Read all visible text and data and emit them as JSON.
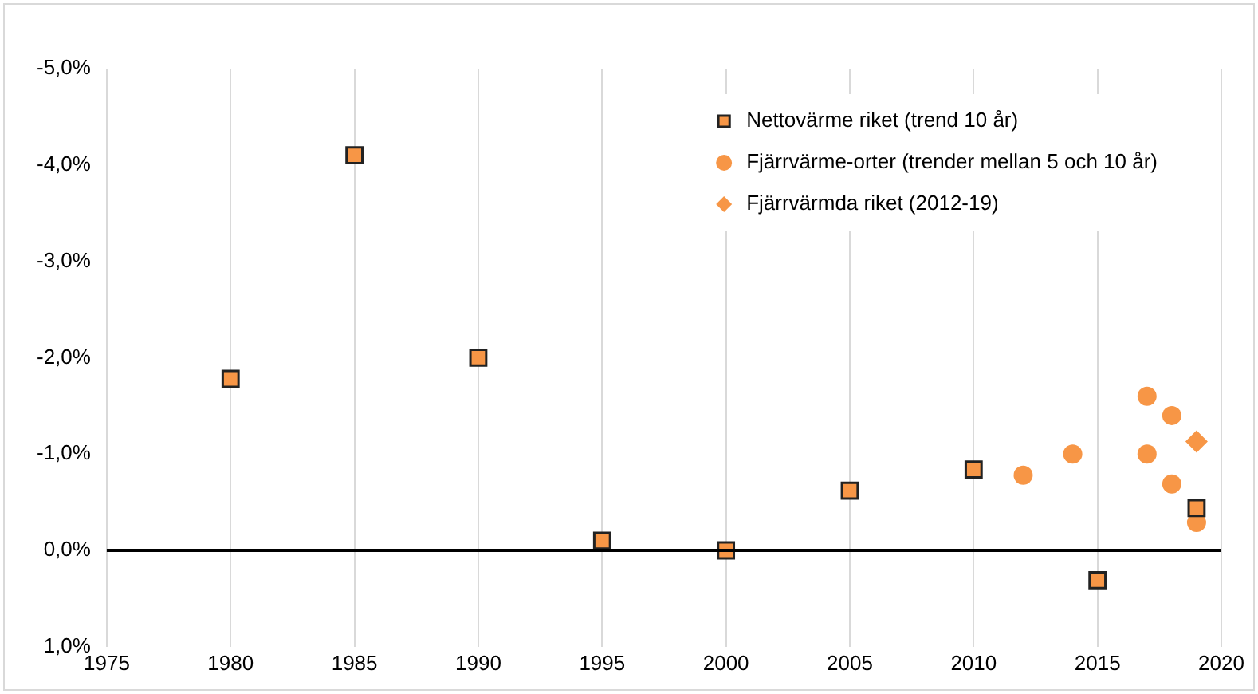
{
  "chart_data": {
    "type": "scatter",
    "xlim": [
      1975,
      2020
    ],
    "xticks": [
      1975,
      1980,
      1985,
      1990,
      1995,
      2000,
      2005,
      2010,
      2015,
      2020
    ],
    "ylim": [
      1,
      -5
    ],
    "yticks": [
      {
        "value": -5,
        "label": "-5,0%"
      },
      {
        "value": -4,
        "label": "-4,0%"
      },
      {
        "value": -3,
        "label": "-3,0%"
      },
      {
        "value": -2,
        "label": "-2,0%"
      },
      {
        "value": -1,
        "label": "-1,0%"
      },
      {
        "value": 0,
        "label": "0,0%"
      },
      {
        "value": 1,
        "label": "1,0%"
      }
    ],
    "grid": "x",
    "legend": "top right",
    "ref_lines": [
      {
        "axis": "y",
        "value": 0,
        "color": "#000000"
      }
    ],
    "series": [
      {
        "name": "Nettovärme riket (trend 10 år)",
        "color": "#f79646",
        "marker": "square",
        "x": [
          1980,
          1985,
          1990,
          1995,
          2000,
          2005,
          2010,
          2015,
          2019
        ],
        "values": [
          -1.78,
          -4.1,
          -2.0,
          -0.1,
          0.0,
          -0.62,
          -0.84,
          0.31,
          -0.44
        ]
      },
      {
        "name": "Fjärrvärme-orter (trender mellan 5 och 10 år)",
        "color": "#f79646",
        "marker": "circle",
        "x": [
          2012,
          2014,
          2017,
          2017,
          2018,
          2018,
          2019
        ],
        "values": [
          -0.78,
          -1.0,
          -1.6,
          -1.0,
          -1.4,
          -0.69,
          -0.29
        ]
      },
      {
        "name": "Fjärrvärmda riket (2012-19)",
        "color": "#f79646",
        "marker": "diamond",
        "x": [
          2019
        ],
        "values": [
          -1.13
        ]
      }
    ]
  }
}
